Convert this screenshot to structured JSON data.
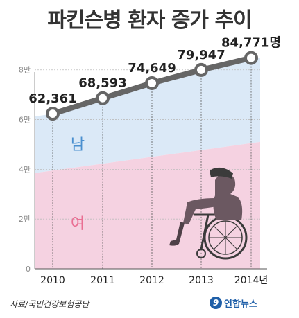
{
  "title": "파킨슨병 환자 증가 추이",
  "source": "자료/국민건강보험공단",
  "logo": {
    "mark": "9",
    "text": "연합뉴스"
  },
  "colors": {
    "male_area": "#dbe9f7",
    "female_area": "#f5d2e1",
    "line": "#666666",
    "male_label": "#4a8fcf",
    "female_label": "#e96f93"
  },
  "chart_data": {
    "type": "line",
    "title": "파킨슨병 환자 증가 추이",
    "x": [
      "2010",
      "2011",
      "2012",
      "2013",
      "2014년"
    ],
    "y_ticks": [
      "0",
      "2만",
      "4만",
      "6만",
      "8만"
    ],
    "y_tick_values": [
      0,
      20000,
      40000,
      60000,
      80000
    ],
    "ylim": [
      0,
      88000
    ],
    "series": [
      {
        "values": [
          62361,
          68593,
          74649,
          79947,
          84771
        ],
        "labels": [
          "62,361",
          "68,593",
          "74,649",
          "79,947",
          "84,771명"
        ]
      }
    ],
    "area_split": {
      "start": 38500,
      "end": 51000
    },
    "area_labels": {
      "male": "남",
      "female": "여"
    },
    "grid": true
  }
}
